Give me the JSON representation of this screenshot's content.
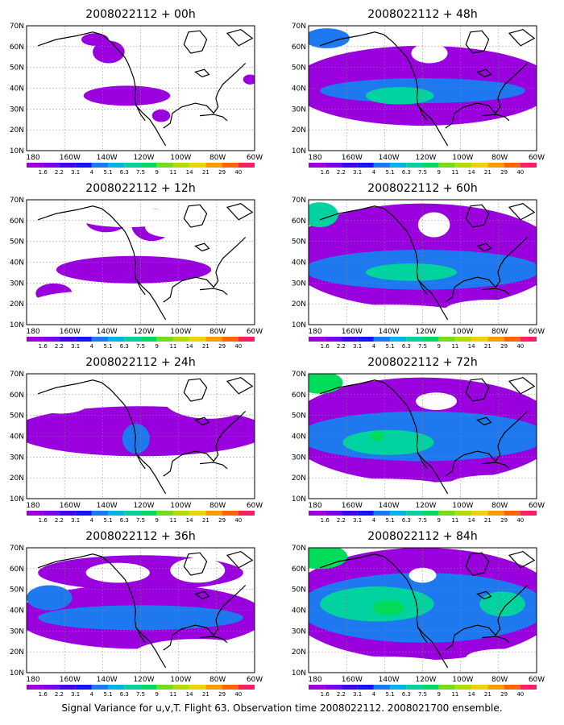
{
  "caption": "Signal Variance for u,v,T. Flight 63. Observation time 2008022112. 2008021700 ensemble.",
  "lon_labels": [
    "180",
    "160W",
    "140W",
    "120W",
    "100W",
    "80W",
    "60W"
  ],
  "lat_labels": [
    "70N",
    "60N",
    "50N",
    "40N",
    "30N",
    "20N",
    "10N"
  ],
  "colorbar": {
    "levels": [
      "1.6",
      "2.2",
      "3.1",
      "4",
      "5.1",
      "6.3",
      "7.5",
      "9",
      "11",
      "14",
      "21",
      "29",
      "40"
    ],
    "colors": [
      "#9900dd",
      "#7a00f0",
      "#4400ee",
      "#1414ff",
      "#1e78f0",
      "#00b4e6",
      "#00d2a0",
      "#00dc5a",
      "#78dc1e",
      "#b4dc00",
      "#f0d200",
      "#f5a000",
      "#ff6400",
      "#ff1e64"
    ]
  },
  "panels": [
    {
      "title": "2008022112 + 00h",
      "intensity": 0
    },
    {
      "title": "2008022112 + 48h",
      "intensity": 4
    },
    {
      "title": "2008022112 + 12h",
      "intensity": 1
    },
    {
      "title": "2008022112 + 60h",
      "intensity": 5
    },
    {
      "title": "2008022112 + 24h",
      "intensity": 2
    },
    {
      "title": "2008022112 + 72h",
      "intensity": 6
    },
    {
      "title": "2008022112 + 36h",
      "intensity": 3
    },
    {
      "title": "2008022112 + 84h",
      "intensity": 7
    }
  ],
  "colors": {
    "field_low": "#9900dd",
    "field_mid": "#1e78f0",
    "field_high": "#00d2a0",
    "field_peak": "#00dc5a",
    "coast": "#000000",
    "grid": "#888888"
  }
}
